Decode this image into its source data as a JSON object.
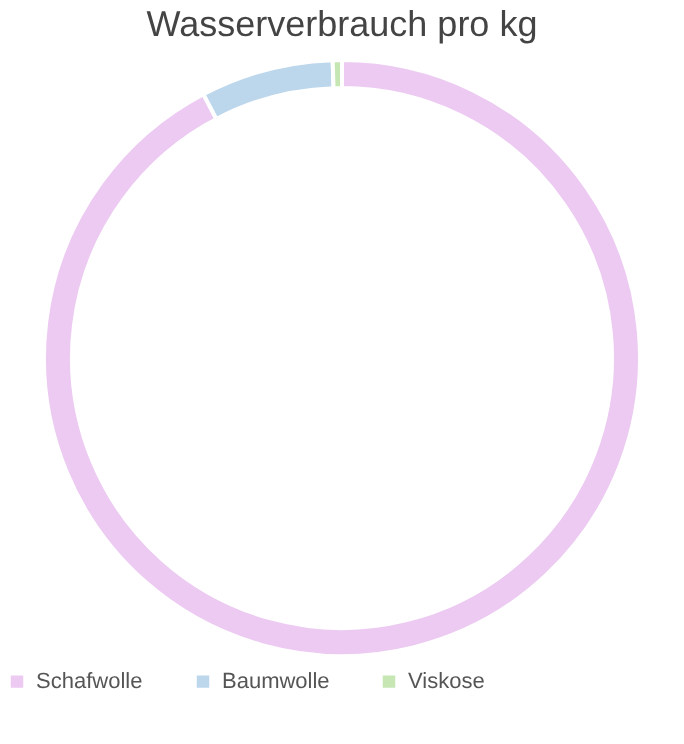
{
  "chart_data": {
    "type": "donut",
    "title": "Wasserverbrauch pro kg",
    "categories": [
      "Schafwolle",
      "Baumwolle",
      "Viskose"
    ],
    "values": [
      92.3,
      7.2,
      0.5
    ],
    "colors": [
      "#eccaf2",
      "#bcd6ec",
      "#c6e6b4"
    ],
    "legend": "bottom"
  }
}
